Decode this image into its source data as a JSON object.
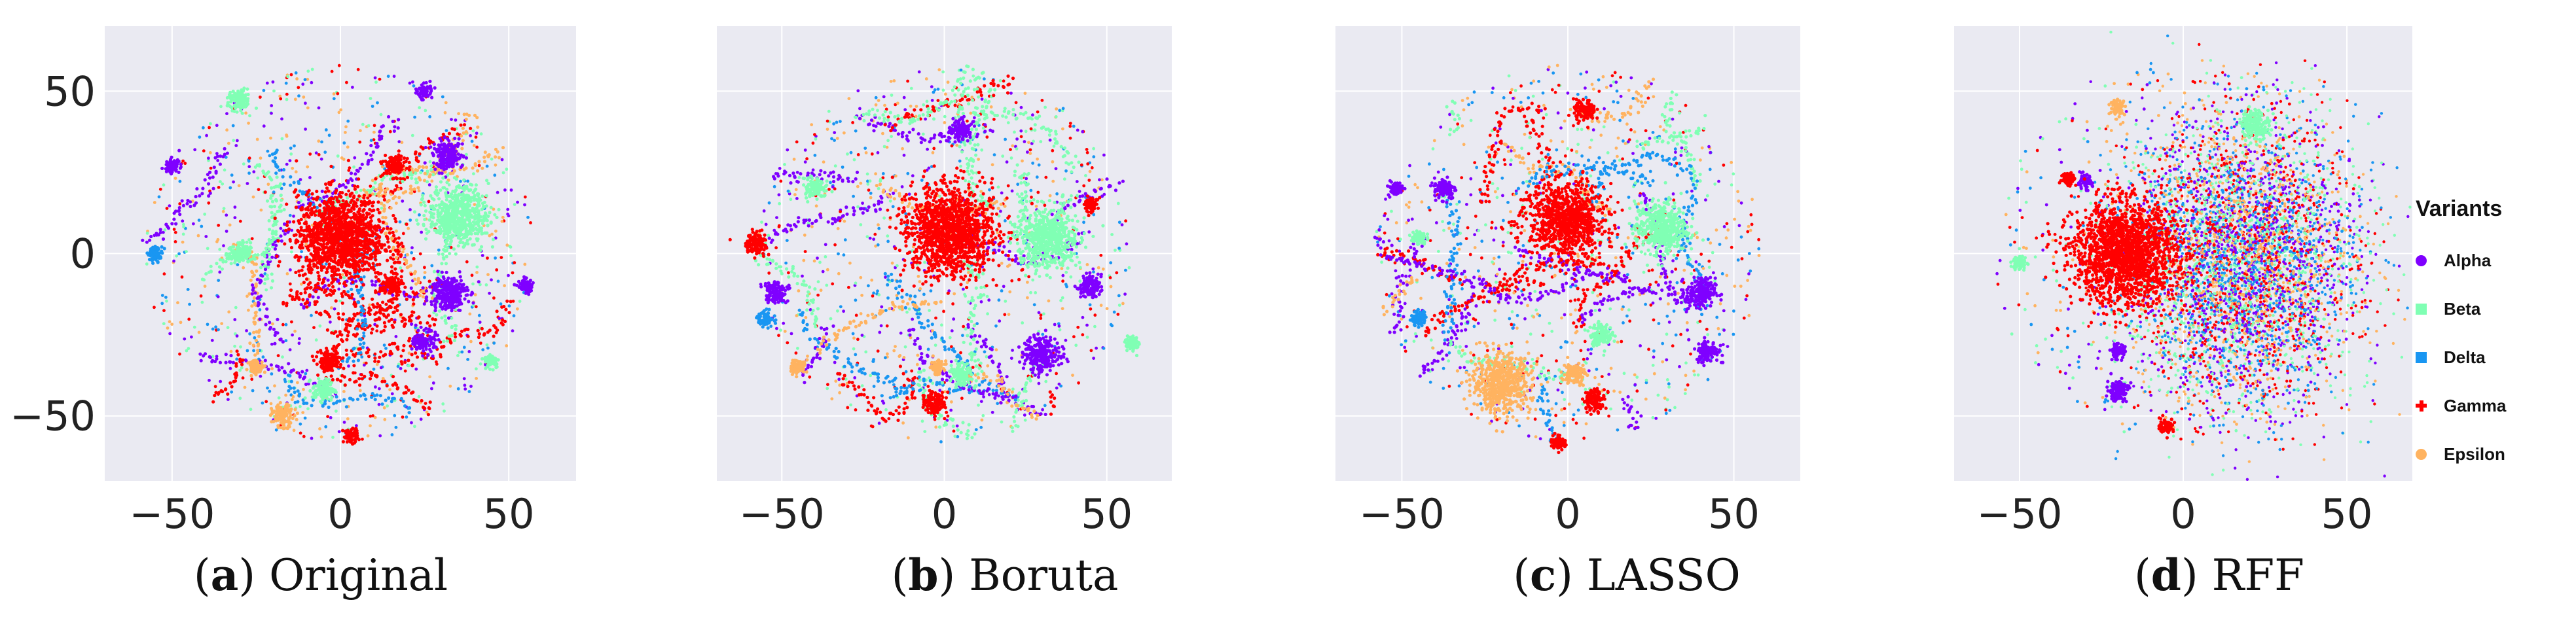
{
  "chart_data": [
    {
      "type": "scatter",
      "panel_label": "a",
      "caption": "Original",
      "xlim": [
        -70,
        70
      ],
      "ylim": [
        -70,
        70
      ],
      "xticks": [
        -50,
        0,
        50
      ],
      "yticks": [
        -50,
        0,
        50
      ],
      "show_yticks": true,
      "grid": true,
      "clusters": [
        {
          "variant": "Alpha",
          "x": 32,
          "y": 30,
          "r": 4
        },
        {
          "variant": "Alpha",
          "x": 32,
          "y": -12,
          "r": 5
        },
        {
          "variant": "Alpha",
          "x": 25,
          "y": -27,
          "r": 3
        },
        {
          "variant": "Alpha",
          "x": 25,
          "y": 50,
          "r": 2
        },
        {
          "variant": "Alpha",
          "x": 55,
          "y": -10,
          "r": 2
        },
        {
          "variant": "Alpha",
          "x": -50,
          "y": 27,
          "r": 2
        },
        {
          "variant": "Beta",
          "x": 35,
          "y": 12,
          "r": 8
        },
        {
          "variant": "Beta",
          "x": -30,
          "y": 47,
          "r": 3
        },
        {
          "variant": "Beta",
          "x": -30,
          "y": 0,
          "r": 3
        },
        {
          "variant": "Beta",
          "x": -5,
          "y": -42,
          "r": 3
        },
        {
          "variant": "Beta",
          "x": 45,
          "y": -33,
          "r": 2
        },
        {
          "variant": "Gamma",
          "x": 0,
          "y": 5,
          "r": 12
        },
        {
          "variant": "Gamma",
          "x": 16,
          "y": 27,
          "r": 3
        },
        {
          "variant": "Gamma",
          "x": -3,
          "y": -33,
          "r": 3
        },
        {
          "variant": "Gamma",
          "x": 15,
          "y": -10,
          "r": 3
        },
        {
          "variant": "Gamma",
          "x": 3,
          "y": -56,
          "r": 2
        },
        {
          "variant": "Epsilon",
          "x": -17,
          "y": -50,
          "r": 3
        },
        {
          "variant": "Epsilon",
          "x": -25,
          "y": -35,
          "r": 2
        },
        {
          "variant": "Delta",
          "x": -55,
          "y": 0,
          "r": 2
        }
      ]
    },
    {
      "type": "scatter",
      "panel_label": "b",
      "caption": "Boruta",
      "xlim": [
        -70,
        70
      ],
      "ylim": [
        -70,
        70
      ],
      "xticks": [
        -50,
        0,
        50
      ],
      "yticks": [
        -50,
        0,
        50
      ],
      "show_yticks": false,
      "grid": true,
      "clusters": [
        {
          "variant": "Alpha",
          "x": 30,
          "y": -31,
          "r": 5
        },
        {
          "variant": "Alpha",
          "x": -52,
          "y": -12,
          "r": 3
        },
        {
          "variant": "Alpha",
          "x": 45,
          "y": -10,
          "r": 3
        },
        {
          "variant": "Alpha",
          "x": 5,
          "y": 38,
          "r": 3
        },
        {
          "variant": "Beta",
          "x": 32,
          "y": 5,
          "r": 8
        },
        {
          "variant": "Beta",
          "x": 5,
          "y": -37,
          "r": 3
        },
        {
          "variant": "Beta",
          "x": -40,
          "y": 20,
          "r": 3
        },
        {
          "variant": "Beta",
          "x": 58,
          "y": -28,
          "r": 2
        },
        {
          "variant": "Gamma",
          "x": 2,
          "y": 7,
          "r": 12
        },
        {
          "variant": "Gamma",
          "x": -58,
          "y": 3,
          "r": 3
        },
        {
          "variant": "Gamma",
          "x": -3,
          "y": -46,
          "r": 3
        },
        {
          "variant": "Gamma",
          "x": 45,
          "y": 15,
          "r": 2
        },
        {
          "variant": "Epsilon",
          "x": -2,
          "y": -35,
          "r": 2
        },
        {
          "variant": "Epsilon",
          "x": -45,
          "y": -35,
          "r": 2
        },
        {
          "variant": "Delta",
          "x": -55,
          "y": -20,
          "r": 2
        }
      ]
    },
    {
      "type": "scatter",
      "panel_label": "c",
      "caption": "LASSO",
      "xlim": [
        -70,
        70
      ],
      "ylim": [
        -70,
        70
      ],
      "xticks": [
        -50,
        0,
        50
      ],
      "yticks": [
        -50,
        0,
        50
      ],
      "show_yticks": false,
      "grid": true,
      "clusters": [
        {
          "variant": "Alpha",
          "x": 40,
          "y": -12,
          "r": 4
        },
        {
          "variant": "Alpha",
          "x": -37,
          "y": 20,
          "r": 3
        },
        {
          "variant": "Alpha",
          "x": 42,
          "y": -30,
          "r": 3
        },
        {
          "variant": "Alpha",
          "x": -52,
          "y": 20,
          "r": 2
        },
        {
          "variant": "Beta",
          "x": 28,
          "y": 8,
          "r": 7
        },
        {
          "variant": "Beta",
          "x": 10,
          "y": -25,
          "r": 3
        },
        {
          "variant": "Beta",
          "x": -45,
          "y": 5,
          "r": 2
        },
        {
          "variant": "Gamma",
          "x": 5,
          "y": 44,
          "r": 3
        },
        {
          "variant": "Gamma",
          "x": 0,
          "y": 10,
          "r": 10
        },
        {
          "variant": "Gamma",
          "x": 8,
          "y": -45,
          "r": 3
        },
        {
          "variant": "Gamma",
          "x": -3,
          "y": -58,
          "r": 2
        },
        {
          "variant": "Epsilon",
          "x": 2,
          "y": -37,
          "r": 3
        },
        {
          "variant": "Epsilon",
          "x": -20,
          "y": -40,
          "r": 8
        },
        {
          "variant": "Delta",
          "x": -45,
          "y": -20,
          "r": 2
        }
      ]
    },
    {
      "type": "scatter",
      "panel_label": "d",
      "caption": "RFF",
      "xlim": [
        -70,
        70
      ],
      "ylim": [
        -70,
        70
      ],
      "xticks": [
        -50,
        0,
        50
      ],
      "yticks": [
        -50,
        0,
        50
      ],
      "show_yticks": false,
      "grid": true,
      "clusters": [
        {
          "variant": "Beta",
          "x": 22,
          "y": 40,
          "r": 4
        },
        {
          "variant": "Beta",
          "x": -50,
          "y": -3,
          "r": 2
        },
        {
          "variant": "Alpha",
          "x": -20,
          "y": -42,
          "r": 3
        },
        {
          "variant": "Alpha",
          "x": -30,
          "y": 22,
          "r": 2
        },
        {
          "variant": "Alpha",
          "x": -20,
          "y": -30,
          "r": 2
        },
        {
          "variant": "Epsilon",
          "x": -20,
          "y": 45,
          "r": 2
        },
        {
          "variant": "Gamma",
          "x": -35,
          "y": 23,
          "r": 2
        },
        {
          "variant": "Gamma",
          "x": -5,
          "y": -53,
          "r": 2
        },
        {
          "variant": "Gamma",
          "x": -18,
          "y": 0,
          "r": 14
        }
      ],
      "legend": {
        "title": "Variants",
        "position": "right",
        "items": [
          {
            "label": "Alpha",
            "color": "#7f00ff",
            "marker": "circle"
          },
          {
            "label": "Beta",
            "color": "#80ffb4",
            "marker": "square"
          },
          {
            "label": "Delta",
            "color": "#1996f2",
            "marker": "square"
          },
          {
            "label": "Gamma",
            "color": "#ff0000",
            "marker": "plus"
          },
          {
            "label": "Epsilon",
            "color": "#ffb360",
            "marker": "circle"
          }
        ]
      }
    }
  ],
  "colors": {
    "Alpha": "#7f00ff",
    "Beta": "#80ffb4",
    "Delta": "#1996f2",
    "Gamma": "#ff0000",
    "Epsilon": "#ffb360",
    "plot_background": "#eaeaf2",
    "grid": "#ffffff"
  }
}
